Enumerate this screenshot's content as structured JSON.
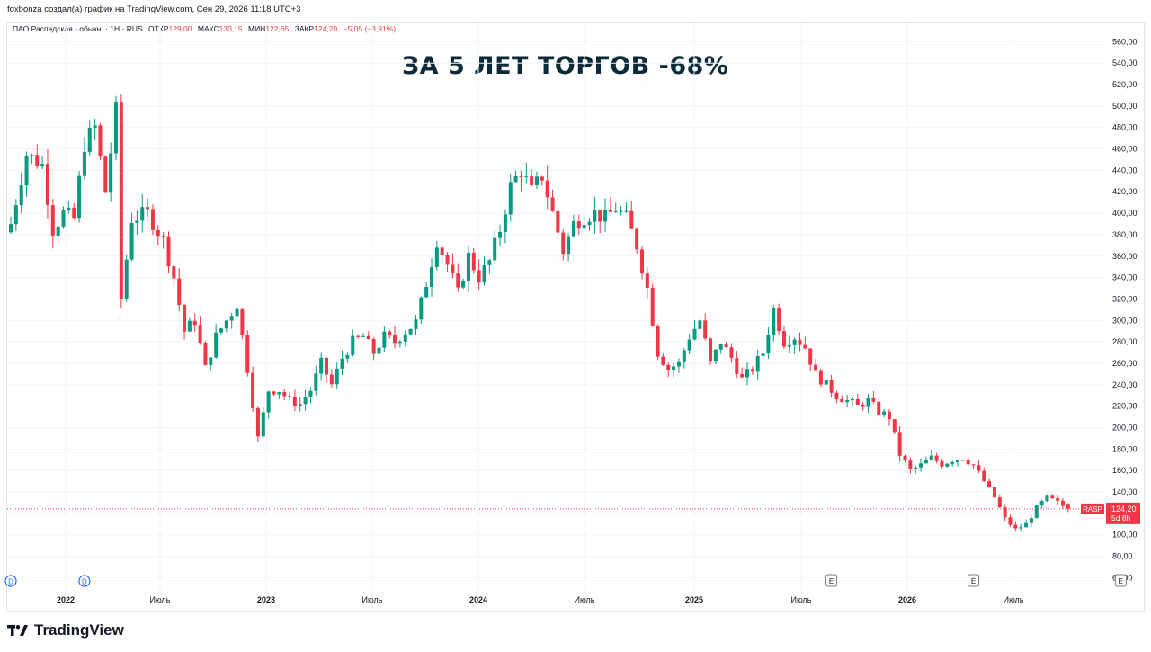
{
  "credit": "foxbonza создал(а) график на TradingView.com, Сен 29, 2026 11:18 UTC+3",
  "legend": {
    "symbol": "ПАО Распадская - обыкн. · 1Н · RUS",
    "open_label": "ОТКР",
    "open": "129,00",
    "high_label": "МАКС",
    "high": "130,15",
    "low_label": "МИН",
    "low": "122,65",
    "close_label": "ЗАКР",
    "close": "124,20",
    "change": "−5,05 (−3,91%)"
  },
  "headline": "ЗА 5 ЛЕТ ТОРГОВ -68%",
  "brand": "TradingView",
  "price_tag": {
    "ticker": "RASP",
    "price": "124,20",
    "countdown": "5d 8h"
  },
  "colors": {
    "up": "#089981",
    "down": "#f23645",
    "grid": "#f0f3fa",
    "text": "#131722",
    "headline": "#0d2a3a"
  },
  "chart_data": {
    "type": "candlestick",
    "ylim": [
      57,
      567
    ],
    "y_ticks": [
      60,
      80,
      100,
      120,
      140,
      160,
      180,
      200,
      220,
      240,
      260,
      280,
      300,
      320,
      340,
      360,
      380,
      400,
      420,
      440,
      460,
      480,
      500,
      520,
      540,
      560
    ],
    "x_ticks": [
      "2022",
      "Июль",
      "2023",
      "Июль",
      "2024",
      "Июль",
      "2025",
      "Июль",
      "2026",
      "Июль"
    ],
    "bold_x_ticks": [
      "2022",
      "2023",
      "2024",
      "2025",
      "2026"
    ],
    "last_price": 124.2,
    "event_markers": [
      {
        "type": "D",
        "period": 0
      },
      {
        "type": "D",
        "period": 14
      },
      {
        "type": "E",
        "period": 156
      },
      {
        "type": "E",
        "period": 183
      },
      {
        "type": "E",
        "period": 211
      },
      {
        "type": "E",
        "period": 238
      }
    ],
    "anchors": [
      [
        0,
        390
      ],
      [
        3,
        455
      ],
      [
        6,
        445
      ],
      [
        8,
        385
      ],
      [
        10,
        400
      ],
      [
        12,
        395
      ],
      [
        14,
        465
      ],
      [
        16,
        480
      ],
      [
        18,
        420
      ],
      [
        20,
        495
      ],
      [
        21,
        320
      ],
      [
        23,
        395
      ],
      [
        26,
        400
      ],
      [
        29,
        375
      ],
      [
        31,
        340
      ],
      [
        33,
        290
      ],
      [
        35,
        300
      ],
      [
        37,
        255
      ],
      [
        39,
        285
      ],
      [
        41,
        300
      ],
      [
        43,
        315
      ],
      [
        45,
        255
      ],
      [
        47,
        190
      ],
      [
        49,
        235
      ],
      [
        51,
        235
      ],
      [
        53,
        225
      ],
      [
        55,
        222
      ],
      [
        57,
        235
      ],
      [
        59,
        260
      ],
      [
        61,
        240
      ],
      [
        63,
        265
      ],
      [
        65,
        280
      ],
      [
        67,
        285
      ],
      [
        69,
        270
      ],
      [
        71,
        285
      ],
      [
        73,
        280
      ],
      [
        75,
        290
      ],
      [
        77,
        298
      ],
      [
        79,
        335
      ],
      [
        81,
        375
      ],
      [
        83,
        352
      ],
      [
        85,
        325
      ],
      [
        87,
        360
      ],
      [
        89,
        340
      ],
      [
        91,
        355
      ],
      [
        93,
        385
      ],
      [
        95,
        425
      ],
      [
        97,
        440
      ],
      [
        99,
        420
      ],
      [
        101,
        435
      ],
      [
        103,
        400
      ],
      [
        105,
        365
      ],
      [
        107,
        390
      ],
      [
        109,
        397
      ],
      [
        111,
        400
      ],
      [
        113,
        395
      ],
      [
        115,
        405
      ],
      [
        117,
        395
      ],
      [
        119,
        370
      ],
      [
        121,
        330
      ],
      [
        123,
        270
      ],
      [
        125,
        255
      ],
      [
        127,
        260
      ],
      [
        129,
        285
      ],
      [
        131,
        300
      ],
      [
        133,
        260
      ],
      [
        135,
        280
      ],
      [
        137,
        265
      ],
      [
        139,
        245
      ],
      [
        141,
        255
      ],
      [
        143,
        270
      ],
      [
        145,
        310
      ],
      [
        147,
        280
      ],
      [
        149,
        285
      ],
      [
        151,
        275
      ],
      [
        153,
        250
      ],
      [
        155,
        240
      ],
      [
        157,
        230
      ],
      [
        159,
        225
      ],
      [
        161,
        220
      ],
      [
        163,
        225
      ],
      [
        165,
        215
      ],
      [
        167,
        210
      ],
      [
        169,
        175
      ],
      [
        171,
        160
      ],
      [
        173,
        165
      ],
      [
        175,
        172
      ],
      [
        177,
        166
      ],
      [
        179,
        170
      ],
      [
        181,
        172
      ],
      [
        183,
        165
      ],
      [
        185,
        150
      ],
      [
        187,
        135
      ],
      [
        189,
        115
      ],
      [
        191,
        105
      ],
      [
        193,
        110
      ],
      [
        195,
        125
      ],
      [
        197,
        135
      ],
      [
        199,
        130
      ],
      [
        201,
        124.2
      ]
    ],
    "volatility": 0.025
  }
}
